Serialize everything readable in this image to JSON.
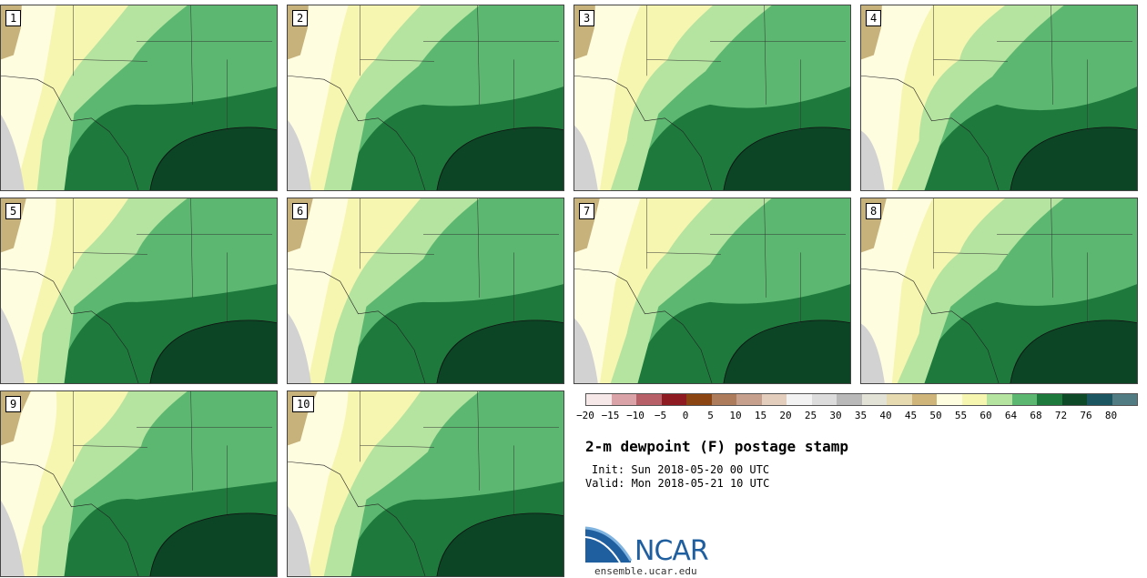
{
  "title": "2-m dewpoint (F) postage stamp",
  "init": "Init: Sun 2018-05-20 00 UTC",
  "valid": "Valid: Mon 2018-05-21 10 UTC",
  "logo": {
    "text": "NCAR",
    "url": "ensemble.ucar.edu"
  },
  "members": [
    "1",
    "2",
    "3",
    "4",
    "5",
    "6",
    "7",
    "8",
    "9",
    "10"
  ],
  "colorbar": {
    "ticks": [
      "−20",
      "−15",
      "−10",
      "−5",
      "0",
      "5",
      "10",
      "15",
      "20",
      "25",
      "30",
      "35",
      "40",
      "45",
      "50",
      "55",
      "60",
      "64",
      "68",
      "72",
      "76",
      "80"
    ],
    "colors": [
      "#f6e8e8",
      "#d9a3a8",
      "#b86068",
      "#8e1a22",
      "#8b4513",
      "#ad7c5c",
      "#c6a08c",
      "#e3cdbd",
      "#f2f2f2",
      "#dcdcdc",
      "#b9b9b9",
      "#e2e2d6",
      "#e6dbb0",
      "#cfb57a",
      "#fffde0",
      "#f6f6b0",
      "#b5e3a0",
      "#5cb870",
      "#1e7a3c",
      "#0e4a27",
      "#1c5660",
      "#527c84"
    ]
  },
  "legend_colors": {
    "gray": "#d2d2d2",
    "tan": "#c8b27c",
    "cream": "#fffde0",
    "yellow": "#f6f6b0",
    "lightgreen": "#b5e3a0",
    "green": "#5cb870",
    "darkgreen": "#1e7a3c",
    "gulf": "#0c4526"
  }
}
